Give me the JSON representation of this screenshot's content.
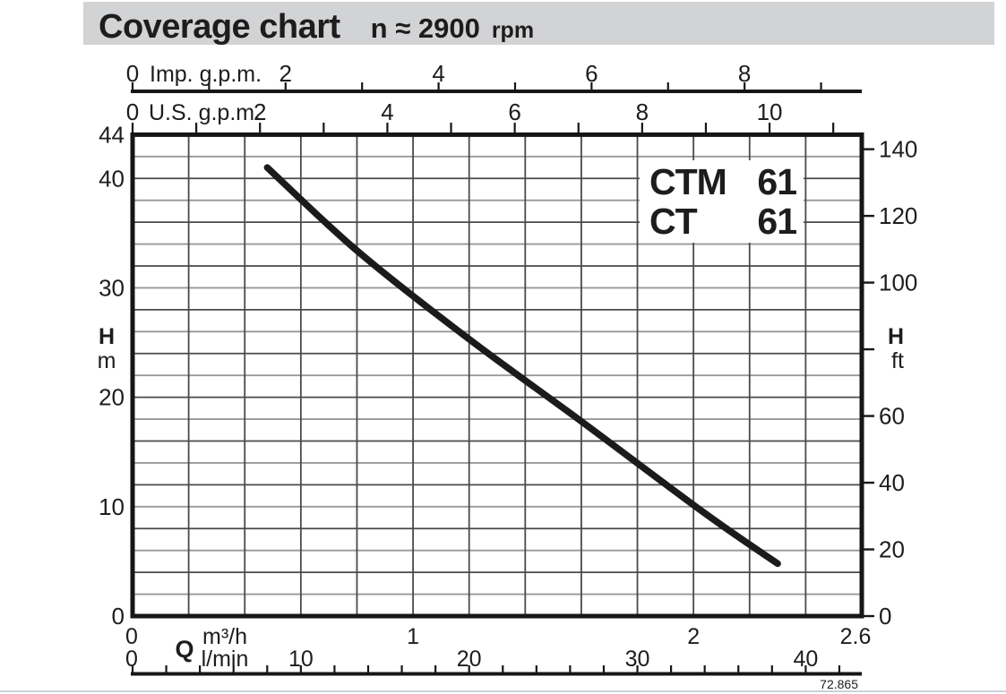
{
  "title": {
    "main": "Coverage chart",
    "speed": "n ≈ 2900",
    "speed_unit": "rpm"
  },
  "chart_data": {
    "type": "line",
    "title": "Coverage chart n ≈ 2900 rpm",
    "x_range_m3h": [
      0,
      2.6
    ],
    "y_range_m": [
      0,
      44
    ],
    "grid": {
      "x_step_m3h": 0.2,
      "y_step_m": 2
    },
    "axes": {
      "imp_gpm": {
        "name": "Imp. g.p.m.",
        "tick_step": 1,
        "ticks_to": 9,
        "labels": [
          0,
          2,
          4,
          6,
          8
        ]
      },
      "us_gpm": {
        "name": "U.S. g.p.m.",
        "tick_step": 1,
        "ticks_to": 11,
        "labels": [
          0,
          2,
          4,
          6,
          8,
          10
        ]
      },
      "m3h": {
        "symbol": "Q",
        "name": "m³/h",
        "labels": [
          "0",
          "1",
          "2",
          "2.6"
        ]
      },
      "lmin": {
        "name": "l/min",
        "tick_step": 2,
        "ticks_to": 42,
        "labels": [
          0,
          10,
          20,
          30,
          40
        ]
      },
      "h_m": {
        "symbol": "H",
        "unit": "m",
        "labels": [
          0,
          10,
          20,
          30,
          40,
          44
        ]
      },
      "h_ft": {
        "symbol": "H",
        "unit": "ft",
        "tick_step": 20,
        "ticks_to": 140,
        "labels": [
          0,
          20,
          40,
          60,
          100,
          120,
          140
        ]
      }
    },
    "model_box": {
      "lines": [
        {
          "name": "CTM",
          "size": "61"
        },
        {
          "name": "CT",
          "size": "61"
        }
      ]
    },
    "series": [
      {
        "name": "CTM 61 / CT 61",
        "x_unit": "m3/h",
        "y_unit": "m",
        "points": [
          [
            0.48,
            41.0
          ],
          [
            0.8,
            33.4
          ],
          [
            1.19,
            25.5
          ],
          [
            1.6,
            17.8
          ],
          [
            2.04,
            9.4
          ],
          [
            2.3,
            4.8
          ]
        ]
      }
    ]
  },
  "footer": {
    "code": "72.865"
  }
}
